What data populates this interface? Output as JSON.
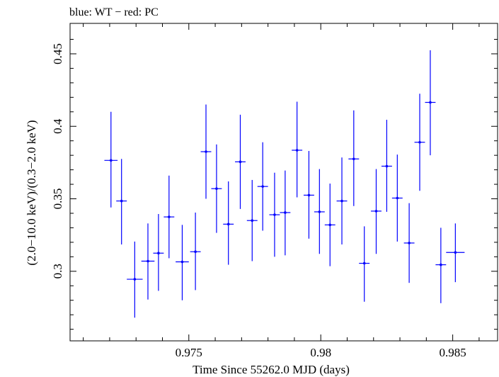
{
  "header": {
    "title": "blue: WT − red: PC"
  },
  "chart_data": {
    "type": "scatter",
    "title": "blue: WT − red: PC",
    "xlabel": "Time Since 55262.0 MJD (days)",
    "ylabel": "(2.0−10.0 keV)/(0.3−2.0 keV)",
    "xlim": [
      0.9705,
      0.9867
    ],
    "ylim": [
      0.252,
      0.471
    ],
    "x_ticks": [
      {
        "value": 0.975,
        "label": "0.975"
      },
      {
        "value": 0.98,
        "label": "0.98"
      },
      {
        "value": 0.985,
        "label": "0.985"
      }
    ],
    "y_ticks": [
      {
        "value": 0.3,
        "label": "0.3"
      },
      {
        "value": 0.35,
        "label": "0.35"
      },
      {
        "value": 0.4,
        "label": "0.4"
      },
      {
        "value": 0.45,
        "label": "0.45"
      }
    ],
    "colors": {
      "series": "#0000ff",
      "axes": "#000000"
    },
    "series": [
      {
        "color": "#0000ff",
        "points": [
          {
            "x": 0.97205,
            "xerr": 0.00025,
            "y": 0.3765,
            "yerr_lo": 0.0325,
            "yerr_hi": 0.0335
          },
          {
            "x": 0.97245,
            "xerr": 0.0002,
            "y": 0.3485,
            "yerr_lo": 0.03,
            "yerr_hi": 0.029
          },
          {
            "x": 0.97295,
            "xerr": 0.0003,
            "y": 0.2945,
            "yerr_lo": 0.0265,
            "yerr_hi": 0.026
          },
          {
            "x": 0.97345,
            "xerr": 0.00025,
            "y": 0.307,
            "yerr_lo": 0.0265,
            "yerr_hi": 0.026
          },
          {
            "x": 0.97385,
            "xerr": 0.0002,
            "y": 0.3125,
            "yerr_lo": 0.026,
            "yerr_hi": 0.027
          },
          {
            "x": 0.97425,
            "xerr": 0.0002,
            "y": 0.3375,
            "yerr_lo": 0.0285,
            "yerr_hi": 0.0285
          },
          {
            "x": 0.97475,
            "xerr": 0.00025,
            "y": 0.3065,
            "yerr_lo": 0.0265,
            "yerr_hi": 0.0255
          },
          {
            "x": 0.97525,
            "xerr": 0.0002,
            "y": 0.3135,
            "yerr_lo": 0.0265,
            "yerr_hi": 0.027
          },
          {
            "x": 0.97565,
            "xerr": 0.0002,
            "y": 0.3825,
            "yerr_lo": 0.0325,
            "yerr_hi": 0.0325
          },
          {
            "x": 0.97605,
            "xerr": 0.0002,
            "y": 0.357,
            "yerr_lo": 0.0305,
            "yerr_hi": 0.0305
          },
          {
            "x": 0.9765,
            "xerr": 0.0002,
            "y": 0.3325,
            "yerr_lo": 0.028,
            "yerr_hi": 0.0295
          },
          {
            "x": 0.97695,
            "xerr": 0.0002,
            "y": 0.3755,
            "yerr_lo": 0.0325,
            "yerr_hi": 0.0325
          },
          {
            "x": 0.9774,
            "xerr": 0.0002,
            "y": 0.335,
            "yerr_lo": 0.028,
            "yerr_hi": 0.028
          },
          {
            "x": 0.9778,
            "xerr": 0.0002,
            "y": 0.3585,
            "yerr_lo": 0.0305,
            "yerr_hi": 0.0305
          },
          {
            "x": 0.97825,
            "xerr": 0.0002,
            "y": 0.339,
            "yerr_lo": 0.029,
            "yerr_hi": 0.029
          },
          {
            "x": 0.97865,
            "xerr": 0.0002,
            "y": 0.3405,
            "yerr_lo": 0.0295,
            "yerr_hi": 0.029
          },
          {
            "x": 0.9791,
            "xerr": 0.0002,
            "y": 0.3835,
            "yerr_lo": 0.0325,
            "yerr_hi": 0.0335
          },
          {
            "x": 0.97955,
            "xerr": 0.0002,
            "y": 0.3525,
            "yerr_lo": 0.03,
            "yerr_hi": 0.0305
          },
          {
            "x": 0.97995,
            "xerr": 0.0002,
            "y": 0.341,
            "yerr_lo": 0.029,
            "yerr_hi": 0.0295
          },
          {
            "x": 0.98035,
            "xerr": 0.0002,
            "y": 0.332,
            "yerr_lo": 0.0285,
            "yerr_hi": 0.0285
          },
          {
            "x": 0.9808,
            "xerr": 0.0002,
            "y": 0.3485,
            "yerr_lo": 0.03,
            "yerr_hi": 0.03
          },
          {
            "x": 0.98125,
            "xerr": 0.0002,
            "y": 0.3775,
            "yerr_lo": 0.0325,
            "yerr_hi": 0.0335
          },
          {
            "x": 0.98165,
            "xerr": 0.0002,
            "y": 0.3055,
            "yerr_lo": 0.0265,
            "yerr_hi": 0.0255
          },
          {
            "x": 0.9821,
            "xerr": 0.0002,
            "y": 0.3415,
            "yerr_lo": 0.0295,
            "yerr_hi": 0.029
          },
          {
            "x": 0.9825,
            "xerr": 0.0002,
            "y": 0.3725,
            "yerr_lo": 0.0315,
            "yerr_hi": 0.032
          },
          {
            "x": 0.9829,
            "xerr": 0.0002,
            "y": 0.3505,
            "yerr_lo": 0.03,
            "yerr_hi": 0.03
          },
          {
            "x": 0.98335,
            "xerr": 0.0002,
            "y": 0.3195,
            "yerr_lo": 0.0275,
            "yerr_hi": 0.0275
          },
          {
            "x": 0.98375,
            "xerr": 0.0002,
            "y": 0.389,
            "yerr_lo": 0.0335,
            "yerr_hi": 0.0335
          },
          {
            "x": 0.98415,
            "xerr": 0.0002,
            "y": 0.4165,
            "yerr_lo": 0.0365,
            "yerr_hi": 0.036
          },
          {
            "x": 0.98455,
            "xerr": 0.0002,
            "y": 0.3045,
            "yerr_lo": 0.0265,
            "yerr_hi": 0.0255
          },
          {
            "x": 0.9851,
            "xerr": 0.00035,
            "y": 0.313,
            "yerr_lo": 0.0205,
            "yerr_hi": 0.02
          }
        ]
      }
    ]
  }
}
